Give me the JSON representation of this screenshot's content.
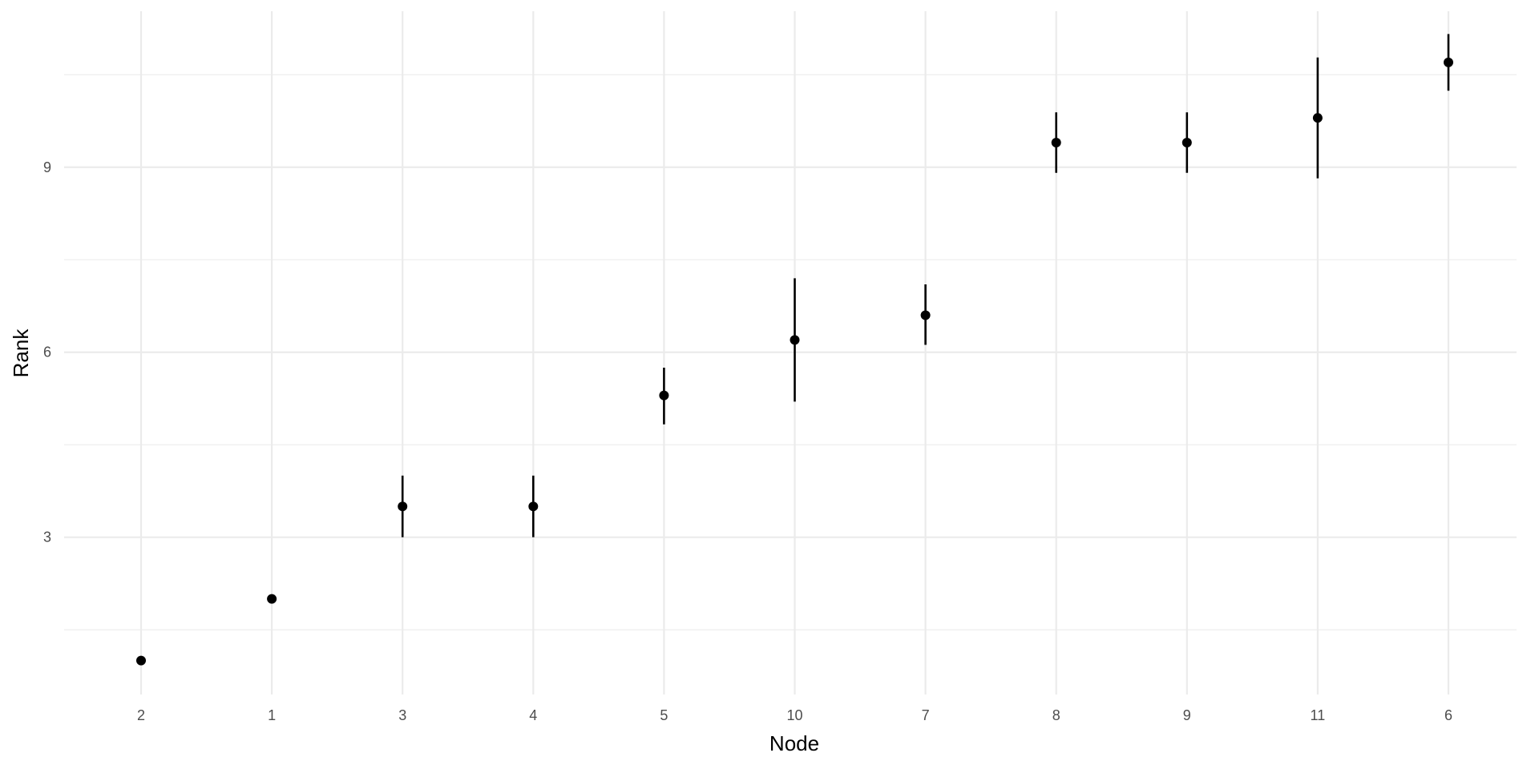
{
  "chart_data": {
    "type": "scatter",
    "title": "",
    "xlabel": "Node",
    "ylabel": "Rank",
    "categories": [
      "2",
      "1",
      "3",
      "4",
      "5",
      "10",
      "7",
      "8",
      "9",
      "11",
      "6"
    ],
    "values": [
      1.0,
      2.0,
      3.5,
      3.5,
      5.3,
      6.2,
      6.6,
      9.4,
      9.4,
      9.8,
      10.7
    ],
    "error_low": [
      1.0,
      2.0,
      3.0,
      3.0,
      4.83,
      5.2,
      6.12,
      8.91,
      8.91,
      8.82,
      10.24
    ],
    "error_high": [
      1.0,
      2.0,
      4.0,
      4.0,
      5.75,
      7.2,
      7.1,
      9.89,
      9.89,
      10.78,
      11.16
    ],
    "ylim": [
      0.45,
      11.53
    ],
    "y_ticks": [
      3,
      6,
      9
    ],
    "y_tick_labels": [
      "3",
      "6",
      "9"
    ],
    "grid": true,
    "legend": "none",
    "colors": {
      "point": "#000000",
      "grid": "#ebebeb"
    }
  }
}
